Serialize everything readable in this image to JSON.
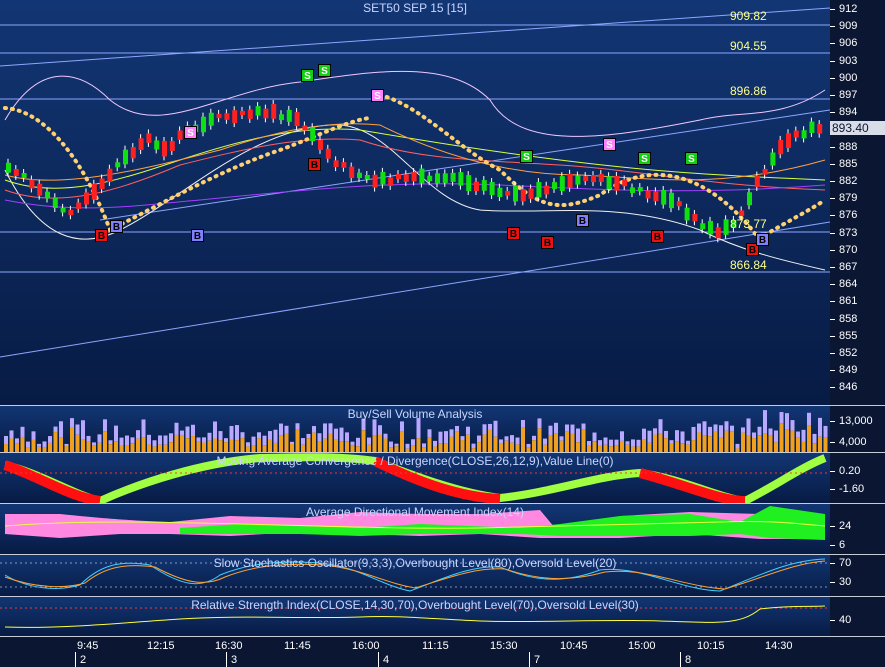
{
  "main": {
    "title": "SET50 SEP 15  [15]",
    "last_price": "893.40",
    "level_labels": [
      "909.82",
      "904.55",
      "896.86",
      "873.77",
      "866.84"
    ],
    "y_ticks": [
      "912",
      "909",
      "906",
      "903",
      "900",
      "897",
      "894",
      "891",
      "888",
      "885",
      "882",
      "879",
      "876",
      "873",
      "870",
      "867",
      "864",
      "861",
      "858",
      "855",
      "852",
      "849",
      "846"
    ],
    "signals": [
      {
        "t": "S",
        "k": "s"
      },
      {
        "t": "S",
        "k": "s"
      },
      {
        "t": "S",
        "k": "sp"
      },
      {
        "t": "S",
        "k": "sp"
      },
      {
        "t": "B",
        "k": "b"
      },
      {
        "t": "B",
        "k": "bb"
      },
      {
        "t": "B",
        "k": "bb"
      },
      {
        "t": "B",
        "k": "b"
      },
      {
        "t": "S",
        "k": "s"
      },
      {
        "t": "B",
        "k": "b"
      },
      {
        "t": "B",
        "k": "b"
      },
      {
        "t": "B",
        "k": "bb"
      },
      {
        "t": "S",
        "k": "sp"
      },
      {
        "t": "S",
        "k": "s"
      },
      {
        "t": "S",
        "k": "s"
      },
      {
        "t": "B",
        "k": "b"
      },
      {
        "t": "B",
        "k": "b"
      },
      {
        "t": "B",
        "k": "bb"
      }
    ]
  },
  "volume": {
    "title": "Buy/Sell Volume Analysis",
    "ticks": [
      "13,000",
      "4,000"
    ]
  },
  "macd": {
    "title": "Moving Average Convergence / Divergence(CLOSE,26,12,9),Value Line(0)",
    "ticks": [
      "0.20",
      "-1.60"
    ]
  },
  "adx": {
    "title": "Average Directional Movement Index(14)",
    "ticks": [
      "24",
      "6"
    ]
  },
  "stoch": {
    "title": "Slow Stochastics Oscillator(9,3,3),Overbought Level(80),Oversold Level(20)",
    "ticks": [
      "70",
      "30"
    ]
  },
  "rsi": {
    "title": "Relative Strength Index(CLOSE,14,30,70),Overbought Level(70),Oversold Level(30)",
    "ticks": [
      "40"
    ]
  },
  "time_axis": {
    "times": [
      "9:45",
      "12:15",
      "16:30",
      "11:45",
      "16:00",
      "11:15",
      "15:30",
      "10:45",
      "15:00",
      "10:15",
      "14:30"
    ],
    "dates": [
      "2",
      "3",
      "4",
      "7",
      "8"
    ]
  },
  "colors": {
    "up": "#10e010",
    "down": "#ff2020",
    "buy_volume": "#f0a020",
    "sell_volume": "#b8a8ff",
    "bg": "#0b1632"
  }
}
